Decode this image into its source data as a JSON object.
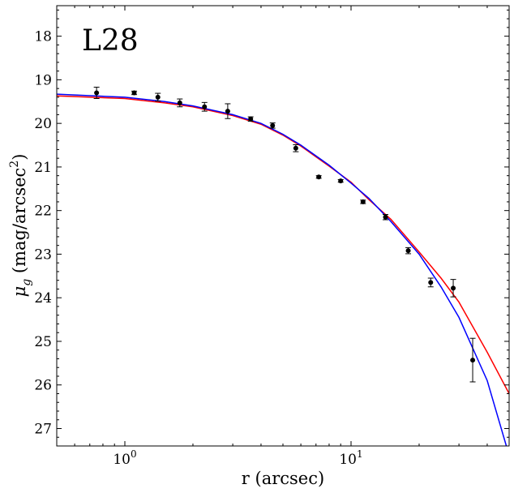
{
  "chart_data": {
    "type": "scatter",
    "title": "",
    "panel_label": "L28",
    "xlabel": "r (arcsec)",
    "ylabel_base": "μ",
    "ylabel_sub": "g",
    "ylabel_rest": " (mag/arcsec",
    "ylabel_sup": "2",
    "ylabel_close": ")",
    "xscale": "log",
    "xlim": [
      0.5,
      50
    ],
    "ylim": [
      27.4,
      17.3
    ],
    "y_inverted": true,
    "x_major_ticks": [
      1,
      10
    ],
    "x_tick_labels": [
      {
        "base": "10",
        "exp": "0"
      },
      {
        "base": "10",
        "exp": "1"
      }
    ],
    "y_ticks": [
      18,
      19,
      20,
      21,
      22,
      23,
      24,
      25,
      26,
      27
    ],
    "grid": false,
    "colors": {
      "data": "#000000",
      "fit_red": "#ff0000",
      "fit_blue": "#0000ff"
    },
    "series": [
      {
        "type": "errorbar",
        "color": "#000000",
        "x": [
          0.75,
          1.1,
          1.4,
          1.75,
          2.25,
          2.85,
          3.6,
          4.5,
          5.7,
          7.2,
          9.0,
          11.3,
          14.2,
          17.9,
          22.5,
          28.3,
          34.5
        ],
        "y": [
          19.3,
          19.3,
          19.4,
          19.53,
          19.62,
          19.72,
          19.9,
          20.05,
          20.57,
          21.23,
          21.32,
          21.8,
          22.15,
          22.92,
          23.65,
          23.78,
          25.43
        ],
        "yerr": [
          0.13,
          0.04,
          0.09,
          0.09,
          0.1,
          0.17,
          0.05,
          0.06,
          0.08,
          0.03,
          0.03,
          0.04,
          0.06,
          0.07,
          0.1,
          0.2,
          0.5
        ]
      },
      {
        "type": "line",
        "color": "#ff0000",
        "x": [
          0.5,
          1,
          1.5,
          2,
          3,
          4,
          5,
          6,
          8,
          10,
          12,
          15,
          20,
          25,
          30,
          40,
          50
        ],
        "y": [
          19.37,
          19.43,
          19.53,
          19.62,
          19.82,
          20.02,
          20.27,
          20.52,
          20.98,
          21.35,
          21.75,
          22.2,
          22.95,
          23.55,
          24.1,
          25.25,
          26.2
        ]
      },
      {
        "type": "line",
        "color": "#0000ff",
        "x": [
          0.5,
          1,
          1.5,
          2,
          3,
          4,
          5,
          6,
          8,
          10,
          12,
          15,
          20,
          25,
          30,
          40,
          48.6
        ],
        "y": [
          19.33,
          19.4,
          19.5,
          19.6,
          19.8,
          20.0,
          20.25,
          20.5,
          20.96,
          21.37,
          21.72,
          22.25,
          23.0,
          23.75,
          24.45,
          25.9,
          27.4
        ]
      }
    ]
  }
}
